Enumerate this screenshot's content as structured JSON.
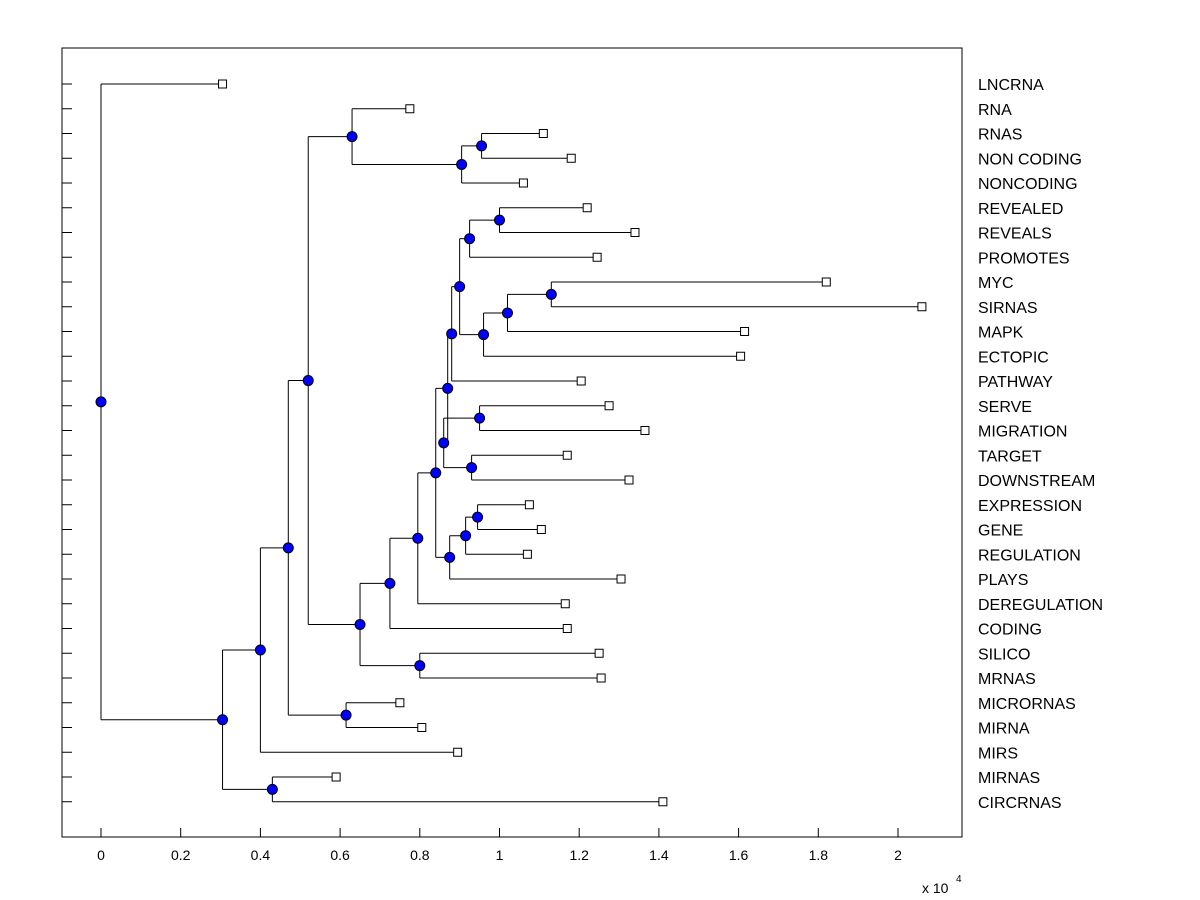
{
  "chart_data": {
    "type": "dendrogram",
    "orientation": "horizontal",
    "x_axis": {
      "range": [
        -1000,
        21600
      ],
      "ticks": [
        0,
        2000,
        4000,
        6000,
        8000,
        10000,
        12000,
        14000,
        16000,
        18000,
        20000
      ],
      "tick_labels": [
        "0",
        "0.2",
        "0.4",
        "0.6",
        "0.8",
        "1",
        "1.2",
        "1.4",
        "1.6",
        "1.8",
        "2"
      ],
      "multiplier_label": "x 10",
      "multiplier_exponent": "4"
    },
    "leaves": [
      {
        "name": "LNCRNA",
        "value": 3050
      },
      {
        "name": "RNA",
        "value": 7750
      },
      {
        "name": "RNAS",
        "value": 11100
      },
      {
        "name": "NON CODING",
        "value": 11800
      },
      {
        "name": "NONCODING",
        "value": 10600
      },
      {
        "name": "REVEALED",
        "value": 12200
      },
      {
        "name": "REVEALS",
        "value": 13400
      },
      {
        "name": "PROMOTES",
        "value": 12450
      },
      {
        "name": "MYC",
        "value": 18200
      },
      {
        "name": "SIRNAS",
        "value": 20600
      },
      {
        "name": "MAPK",
        "value": 16150
      },
      {
        "name": "ECTOPIC",
        "value": 16050
      },
      {
        "name": "PATHWAY",
        "value": 12050
      },
      {
        "name": "SERVE",
        "value": 12750
      },
      {
        "name": "MIGRATION",
        "value": 13650
      },
      {
        "name": "TARGET",
        "value": 11700
      },
      {
        "name": "DOWNSTREAM",
        "value": 13250
      },
      {
        "name": "EXPRESSION",
        "value": 10750
      },
      {
        "name": "GENE",
        "value": 11050
      },
      {
        "name": "REGULATION",
        "value": 10700
      },
      {
        "name": "PLAYS",
        "value": 13050
      },
      {
        "name": "DEREGULATION",
        "value": 11650
      },
      {
        "name": "CODING",
        "value": 11700
      },
      {
        "name": "SILICO",
        "value": 12500
      },
      {
        "name": "MRNAS",
        "value": 12550
      },
      {
        "name": "MICRORNAS",
        "value": 7500
      },
      {
        "name": "MIRNA",
        "value": 8050
      },
      {
        "name": "MIRS",
        "value": 8950
      },
      {
        "name": "MIRNAS",
        "value": 5900
      },
      {
        "name": "CIRCRNAS",
        "value": 14100
      }
    ],
    "merges": [
      {
        "id": "n1",
        "value": 9550,
        "children": [
          "L2",
          "L3"
        ]
      },
      {
        "id": "n2",
        "value": 9050,
        "children": [
          "n1",
          "L4"
        ]
      },
      {
        "id": "n3",
        "value": 6300,
        "children": [
          "L1",
          "n2"
        ]
      },
      {
        "id": "n4",
        "value": 10000,
        "children": [
          "L5",
          "L6"
        ]
      },
      {
        "id": "n5",
        "value": 9250,
        "children": [
          "n4",
          "L7"
        ]
      },
      {
        "id": "n6",
        "value": 11300,
        "children": [
          "L8",
          "L9"
        ]
      },
      {
        "id": "n7",
        "value": 10200,
        "children": [
          "n6",
          "L10"
        ]
      },
      {
        "id": "n8",
        "value": 9600,
        "children": [
          "n7",
          "L11"
        ]
      },
      {
        "id": "n9",
        "value": 9000,
        "children": [
          "n5",
          "n8"
        ]
      },
      {
        "id": "n10",
        "value": 8800,
        "children": [
          "n9",
          "L12"
        ]
      },
      {
        "id": "n11",
        "value": 9500,
        "children": [
          "L13",
          "L14"
        ]
      },
      {
        "id": "n12",
        "value": 9300,
        "children": [
          "L15",
          "L16"
        ]
      },
      {
        "id": "n13",
        "value": 8600,
        "children": [
          "n11",
          "n12"
        ]
      },
      {
        "id": "n14",
        "value": 8700,
        "children": [
          "n10",
          "n13"
        ]
      },
      {
        "id": "n15",
        "value": 9450,
        "children": [
          "L17",
          "L18"
        ]
      },
      {
        "id": "n16",
        "value": 9150,
        "children": [
          "n15",
          "L19"
        ]
      },
      {
        "id": "n17",
        "value": 8750,
        "children": [
          "n16",
          "L20"
        ]
      },
      {
        "id": "n18",
        "value": 8400,
        "children": [
          "n14",
          "n17"
        ]
      },
      {
        "id": "n19",
        "value": 7950,
        "children": [
          "n18",
          "L21"
        ]
      },
      {
        "id": "n20",
        "value": 7250,
        "children": [
          "n19",
          "L22"
        ]
      },
      {
        "id": "n21",
        "value": 8000,
        "children": [
          "L23",
          "L24"
        ]
      },
      {
        "id": "n22",
        "value": 6500,
        "children": [
          "n20",
          "n21"
        ]
      },
      {
        "id": "n23",
        "value": 5200,
        "children": [
          "n3",
          "n22"
        ]
      },
      {
        "id": "n24",
        "value": 6150,
        "children": [
          "L25",
          "L26"
        ]
      },
      {
        "id": "n25",
        "value": 4700,
        "children": [
          "n23",
          "n24"
        ]
      },
      {
        "id": "n26",
        "value": 4000,
        "children": [
          "n25",
          "L27"
        ]
      },
      {
        "id": "n27",
        "value": 4300,
        "children": [
          "L28",
          "L29"
        ]
      },
      {
        "id": "n28",
        "value": 3050,
        "children": [
          "n26",
          "n27"
        ]
      },
      {
        "id": "n29",
        "value": 0,
        "children": [
          "L0",
          "n28"
        ]
      }
    ],
    "colors": {
      "node_fill": "#0000ff",
      "node_stroke": "#000000",
      "line": "#000000",
      "leaf_marker_fill": "#ffffff"
    }
  }
}
